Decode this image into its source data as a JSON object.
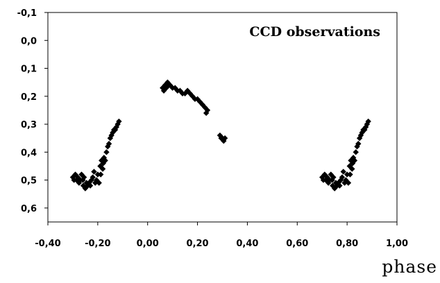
{
  "chart_data": {
    "type": "scatter",
    "title": "",
    "annotation": "CCD observations",
    "xlabel": "phase",
    "ylabel": "",
    "xlim": [
      -0.4,
      1.0
    ],
    "ylim": [
      -0.1,
      0.65
    ],
    "y_inverted": true,
    "grid": false,
    "legend": "none",
    "marker_color": "#000000",
    "x_ticks": [
      {
        "value": -0.4,
        "label": "-0,40"
      },
      {
        "value": -0.2,
        "label": "-0,20"
      },
      {
        "value": 0.0,
        "label": "0,00"
      },
      {
        "value": 0.2,
        "label": "0,20"
      },
      {
        "value": 0.4,
        "label": "0,40"
      },
      {
        "value": 0.6,
        "label": "0,60"
      },
      {
        "value": 0.8,
        "label": "0,80"
      },
      {
        "value": 1.0,
        "label": "1,00"
      }
    ],
    "y_ticks": [
      {
        "value": -0.1,
        "label": "-0,1"
      },
      {
        "value": 0.0,
        "label": "0,0"
      },
      {
        "value": 0.1,
        "label": "0,1"
      },
      {
        "value": 0.2,
        "label": "0,2"
      },
      {
        "value": 0.3,
        "label": "0,3"
      },
      {
        "value": 0.4,
        "label": "0,4"
      },
      {
        "value": 0.5,
        "label": "0,5"
      },
      {
        "value": 0.6,
        "label": "0,6"
      }
    ],
    "series": [
      {
        "points": [
          [
            -0.3,
            0.49
          ],
          [
            -0.295,
            0.5
          ],
          [
            -0.29,
            0.48
          ],
          [
            -0.285,
            0.5
          ],
          [
            -0.28,
            0.49
          ],
          [
            -0.275,
            0.51
          ],
          [
            -0.27,
            0.5
          ],
          [
            -0.265,
            0.48
          ],
          [
            -0.26,
            0.5
          ],
          [
            -0.258,
            0.52
          ],
          [
            -0.255,
            0.49
          ],
          [
            -0.25,
            0.53
          ],
          [
            -0.245,
            0.51
          ],
          [
            -0.24,
            0.52
          ],
          [
            -0.235,
            0.51
          ],
          [
            -0.23,
            0.52
          ],
          [
            -0.225,
            0.5
          ],
          [
            -0.22,
            0.49
          ],
          [
            -0.215,
            0.47
          ],
          [
            -0.21,
            0.51
          ],
          [
            -0.205,
            0.5
          ],
          [
            -0.2,
            0.48
          ],
          [
            -0.195,
            0.51
          ],
          [
            -0.19,
            0.45
          ],
          [
            -0.188,
            0.48
          ],
          [
            -0.185,
            0.43
          ],
          [
            -0.18,
            0.46
          ],
          [
            -0.178,
            0.44
          ],
          [
            -0.175,
            0.42
          ],
          [
            -0.17,
            0.43
          ],
          [
            -0.165,
            0.4
          ],
          [
            -0.16,
            0.38
          ],
          [
            -0.155,
            0.37
          ],
          [
            -0.15,
            0.35
          ],
          [
            -0.145,
            0.34
          ],
          [
            -0.14,
            0.33
          ],
          [
            -0.135,
            0.32
          ],
          [
            -0.13,
            0.32
          ],
          [
            -0.125,
            0.31
          ],
          [
            -0.12,
            0.3
          ],
          [
            -0.115,
            0.29
          ],
          [
            0.06,
            0.17
          ],
          [
            0.065,
            0.18
          ],
          [
            0.07,
            0.16
          ],
          [
            0.075,
            0.17
          ],
          [
            0.08,
            0.15
          ],
          [
            0.085,
            0.16
          ],
          [
            0.09,
            0.16
          ],
          [
            0.1,
            0.17
          ],
          [
            0.11,
            0.17
          ],
          [
            0.12,
            0.18
          ],
          [
            0.13,
            0.18
          ],
          [
            0.14,
            0.19
          ],
          [
            0.15,
            0.19
          ],
          [
            0.16,
            0.18
          ],
          [
            0.17,
            0.19
          ],
          [
            0.18,
            0.2
          ],
          [
            0.19,
            0.21
          ],
          [
            0.2,
            0.21
          ],
          [
            0.21,
            0.22
          ],
          [
            0.22,
            0.23
          ],
          [
            0.23,
            0.24
          ],
          [
            0.235,
            0.26
          ],
          [
            0.24,
            0.25
          ],
          [
            0.29,
            0.34
          ],
          [
            0.295,
            0.35
          ],
          [
            0.3,
            0.35
          ],
          [
            0.305,
            0.36
          ],
          [
            0.31,
            0.35
          ],
          [
            0.7,
            0.49
          ],
          [
            0.705,
            0.5
          ],
          [
            0.71,
            0.48
          ],
          [
            0.715,
            0.5
          ],
          [
            0.72,
            0.49
          ],
          [
            0.725,
            0.51
          ],
          [
            0.73,
            0.5
          ],
          [
            0.735,
            0.48
          ],
          [
            0.74,
            0.5
          ],
          [
            0.742,
            0.52
          ],
          [
            0.745,
            0.49
          ],
          [
            0.75,
            0.53
          ],
          [
            0.755,
            0.51
          ],
          [
            0.76,
            0.52
          ],
          [
            0.765,
            0.51
          ],
          [
            0.77,
            0.52
          ],
          [
            0.775,
            0.5
          ],
          [
            0.78,
            0.49
          ],
          [
            0.785,
            0.47
          ],
          [
            0.79,
            0.51
          ],
          [
            0.795,
            0.5
          ],
          [
            0.8,
            0.48
          ],
          [
            0.805,
            0.51
          ],
          [
            0.81,
            0.45
          ],
          [
            0.812,
            0.48
          ],
          [
            0.815,
            0.43
          ],
          [
            0.82,
            0.46
          ],
          [
            0.822,
            0.44
          ],
          [
            0.825,
            0.42
          ],
          [
            0.83,
            0.43
          ],
          [
            0.835,
            0.4
          ],
          [
            0.84,
            0.38
          ],
          [
            0.845,
            0.37
          ],
          [
            0.85,
            0.35
          ],
          [
            0.855,
            0.34
          ],
          [
            0.86,
            0.33
          ],
          [
            0.865,
            0.32
          ],
          [
            0.87,
            0.32
          ],
          [
            0.875,
            0.31
          ],
          [
            0.88,
            0.3
          ],
          [
            0.885,
            0.29
          ]
        ]
      }
    ]
  }
}
